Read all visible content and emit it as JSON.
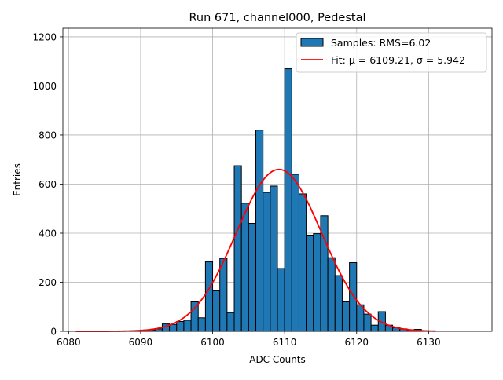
{
  "chart_data": {
    "type": "bar",
    "title": "Run 671, channel000, Pedestal",
    "xlabel": "ADC Counts",
    "ylabel": "Entries",
    "xlim": [
      6079.2,
      6138.8
    ],
    "ylim": [
      0,
      1235
    ],
    "xticks": [
      6080,
      6090,
      6100,
      6110,
      6120,
      6130
    ],
    "yticks": [
      0,
      200,
      400,
      600,
      800,
      1000,
      1200
    ],
    "grid": true,
    "legend_position": "top-right",
    "bar_color": "#1f77b4",
    "fit_color": "#ff0000",
    "histogram": {
      "name": "Samples: RMS=6.02",
      "x": [
        6081,
        6082,
        6083,
        6084,
        6085,
        6086,
        6087,
        6088,
        6089,
        6090,
        6091,
        6092,
        6093,
        6094,
        6095,
        6096,
        6097,
        6098,
        6099,
        6100,
        6101,
        6102,
        6103,
        6104,
        6105,
        6106,
        6107,
        6108,
        6109,
        6110,
        6111,
        6112,
        6113,
        6114,
        6115,
        6116,
        6117,
        6118,
        6119,
        6120,
        6121,
        6122,
        6123,
        6124,
        6125,
        6126,
        6127,
        6128,
        6129,
        6130
      ],
      "values": [
        0,
        0,
        0,
        0,
        0,
        0,
        1,
        1,
        1,
        5,
        6,
        10,
        30,
        28,
        40,
        45,
        120,
        55,
        283,
        165,
        297,
        76,
        675,
        522,
        440,
        820,
        566,
        592,
        256,
        1070,
        640,
        560,
        392,
        398,
        471,
        300,
        227,
        120,
        280,
        108,
        70,
        25,
        80,
        25,
        15,
        10,
        5,
        8,
        2,
        0
      ]
    },
    "fit": {
      "name": "Fit: μ = 6109.21, σ = 5.942",
      "mu": 6109.21,
      "sigma": 5.942,
      "amplitude": 660,
      "x_range": [
        6081,
        6131
      ]
    }
  }
}
